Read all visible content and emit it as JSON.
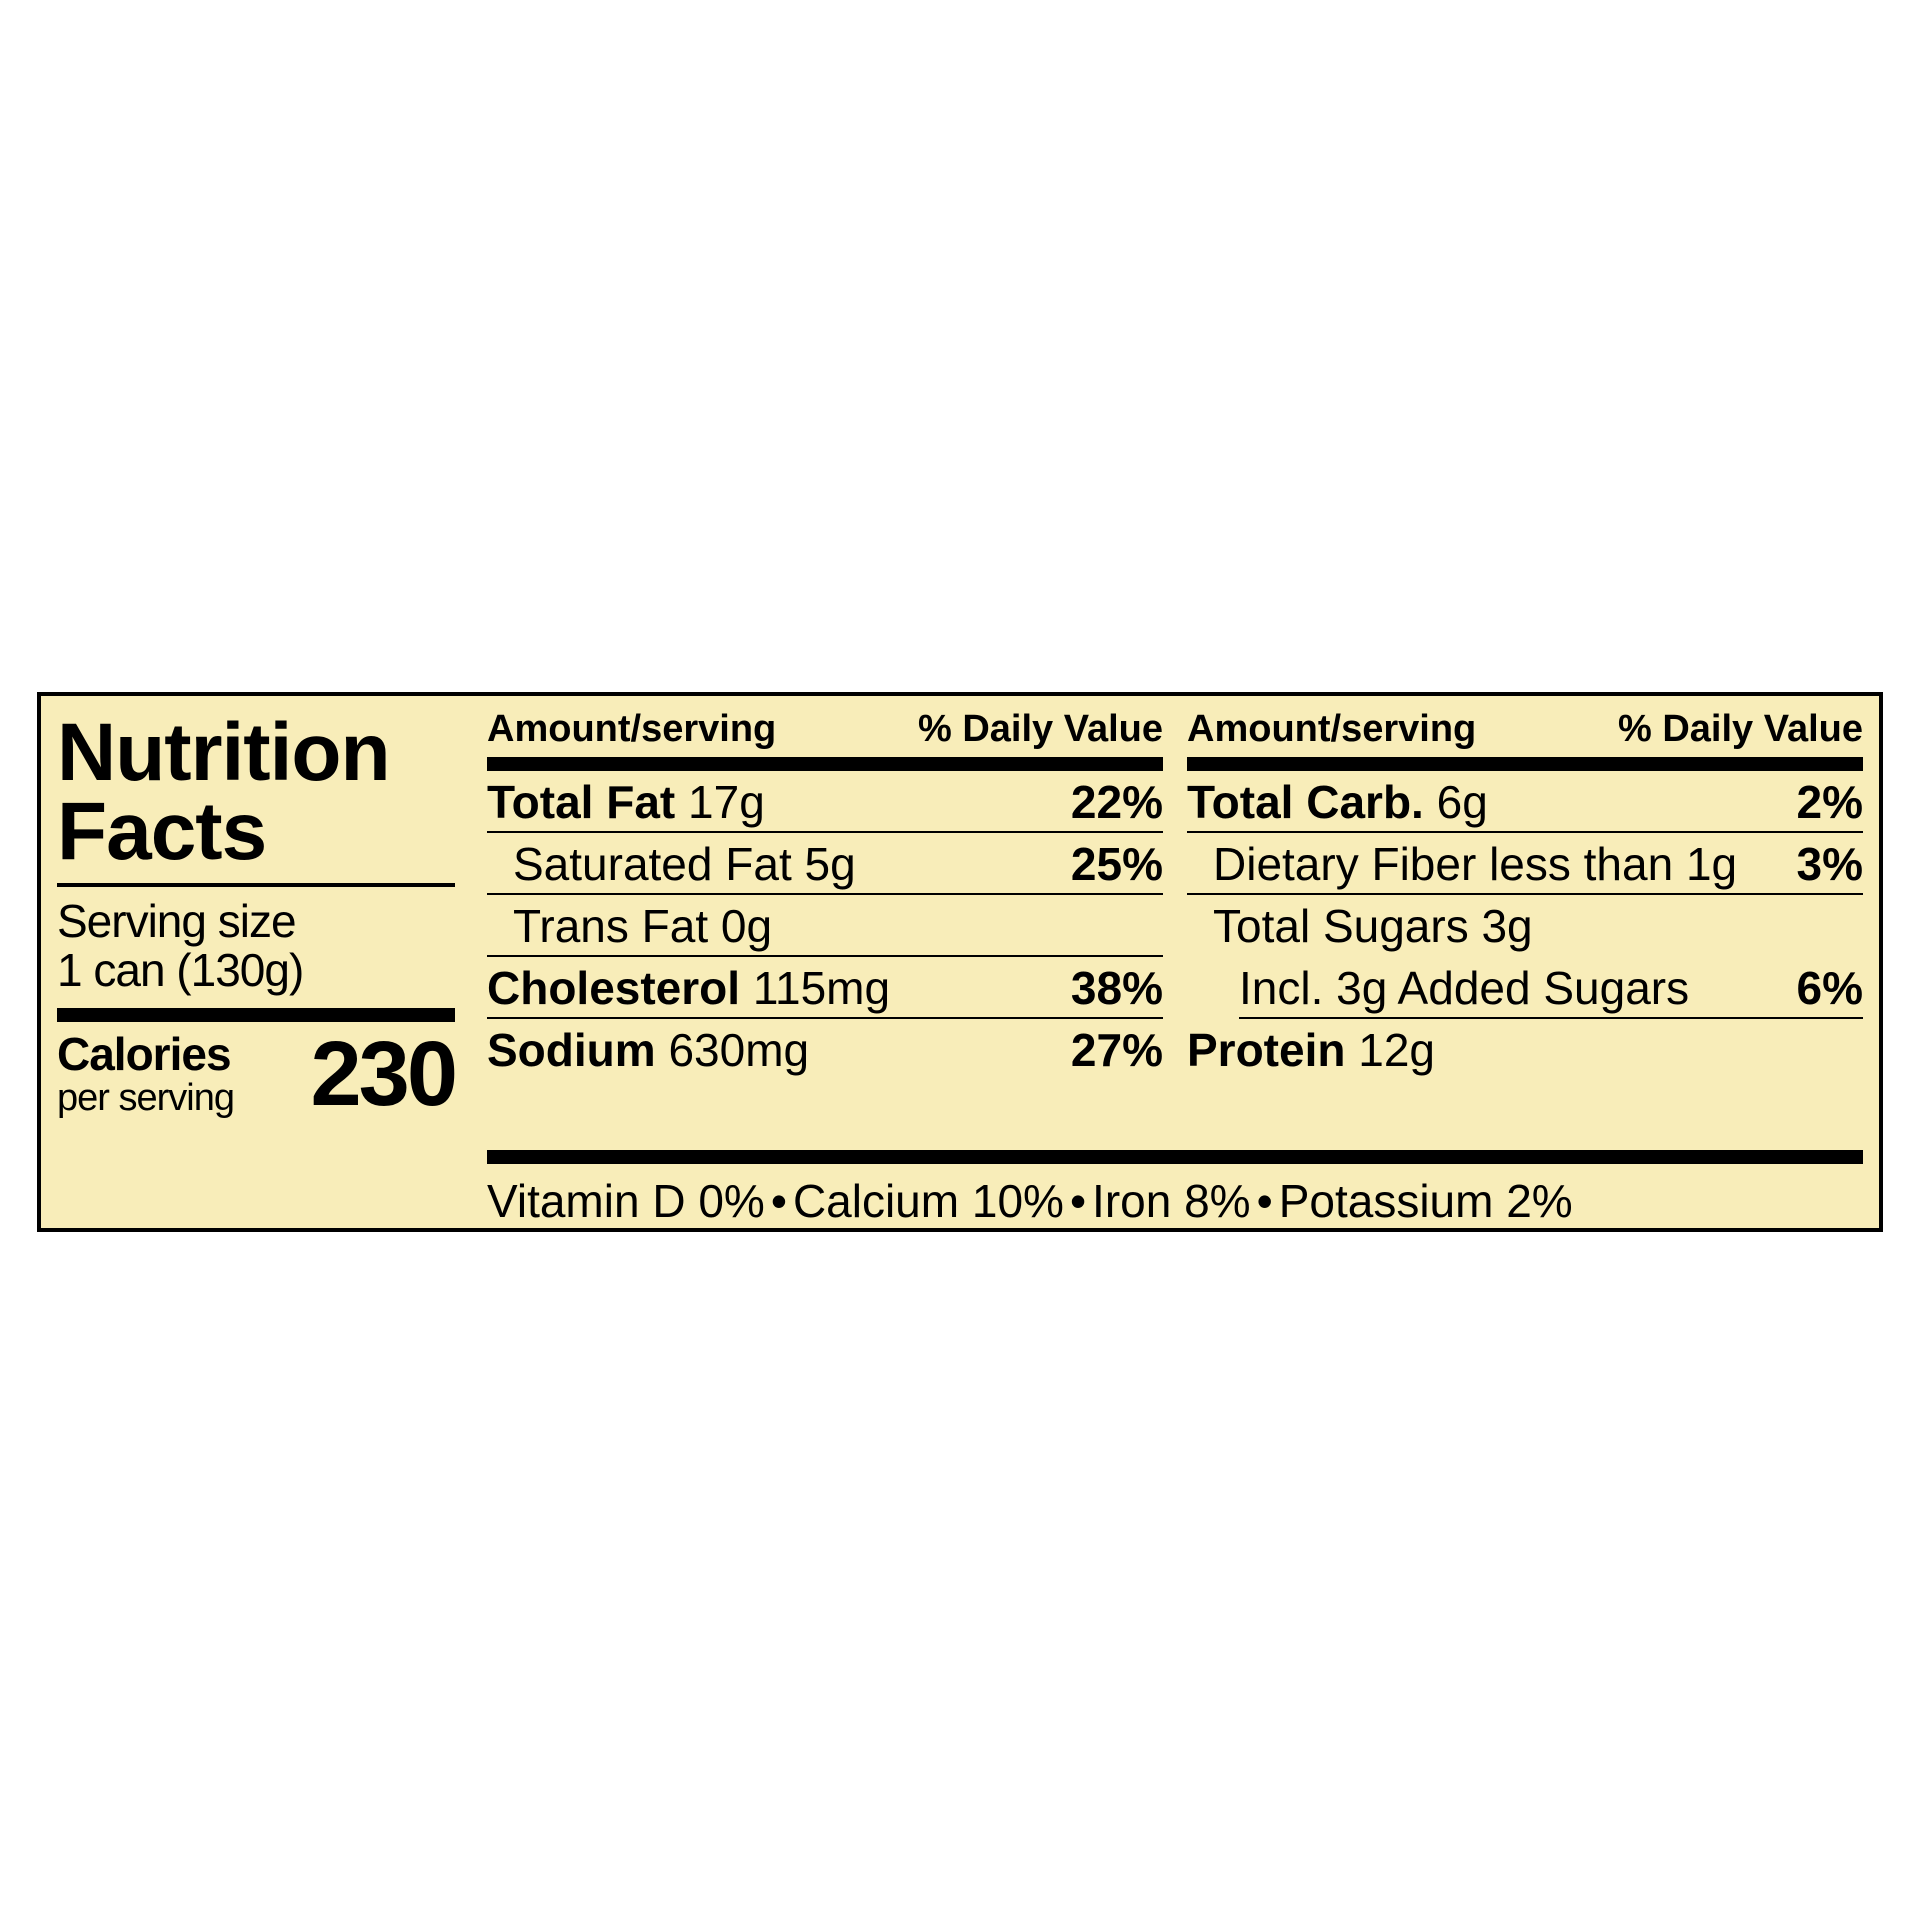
{
  "colors": {
    "panel_bg": "#f8edb9",
    "border": "#000000",
    "text": "#000000",
    "page_bg": "#ffffff"
  },
  "title_line1": "Nutrition",
  "title_line2": "Facts",
  "serving_label": "Serving size",
  "serving_value": "1 can (130g)",
  "calories_label": "Calories",
  "calories_sub": "per serving",
  "calories_value": "230",
  "header_amount": "Amount/serving",
  "header_dv": "% Daily Value",
  "col1": {
    "r1": {
      "bold": "Total Fat",
      "rest": " 17g",
      "dv": "22%"
    },
    "r2": {
      "name": "Saturated Fat 5g",
      "dv": "25%"
    },
    "r3": {
      "name": "Trans Fat 0g",
      "dv": ""
    },
    "r4": {
      "bold": "Cholesterol",
      "rest": " 115mg",
      "dv": "38%"
    },
    "r5": {
      "bold": "Sodium",
      "rest": " 630mg",
      "dv": "27%"
    }
  },
  "col2": {
    "r1": {
      "bold": "Total Carb.",
      "rest": " 6g",
      "dv": "2%"
    },
    "r2": {
      "name": "Dietary Fiber less than 1g",
      "dv": "3%"
    },
    "r3": {
      "name": "Total Sugars 3g",
      "dv": ""
    },
    "r4": {
      "name": "Incl. 3g Added Sugars",
      "dv": "6%"
    },
    "r5": {
      "bold": "Protein",
      "rest": " 12g",
      "dv": ""
    }
  },
  "footer": {
    "v1": "Vitamin D 0%",
    "v2": "Calcium 10%",
    "v3": "Iron 8%",
    "v4": "Potassium 2%"
  }
}
